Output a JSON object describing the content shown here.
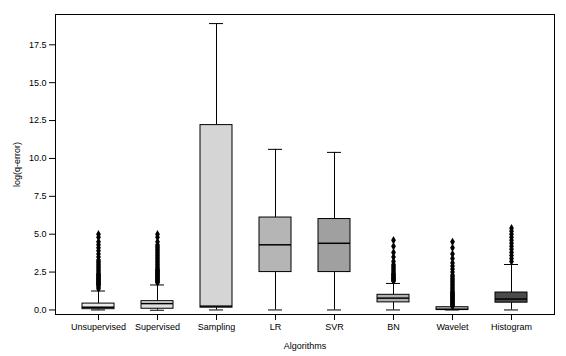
{
  "chart_data": {
    "type": "box",
    "xlabel": "Algorithms",
    "ylabel": "log(q-error)",
    "categories": [
      "Unsupervised",
      "Supervised",
      "Sampling",
      "LR",
      "SVR",
      "BN",
      "Wavelet",
      "Histogram"
    ],
    "median": [
      0.18,
      0.42,
      0.25,
      4.3,
      4.4,
      0.78,
      0.04,
      0.72
    ],
    "q1": [
      0.05,
      0.08,
      0.15,
      2.5,
      2.5,
      0.5,
      0.01,
      0.48
    ],
    "q3": [
      0.42,
      0.58,
      12.2,
      6.1,
      6.0,
      1.0,
      0.18,
      1.15
    ],
    "whislo": [
      0.0,
      -0.02,
      0.0,
      0.0,
      0.0,
      0.0,
      0.0,
      0.0
    ],
    "whishi": [
      1.25,
      1.65,
      18.9,
      10.6,
      10.4,
      1.75,
      0.04,
      3.0
    ],
    "fliers": [
      [
        1.4,
        1.5,
        1.6,
        1.65,
        1.7,
        1.75,
        1.8,
        1.85,
        1.9,
        1.95,
        2.0,
        2.05,
        2.1,
        2.15,
        2.2,
        2.25,
        2.3,
        2.35,
        2.4,
        2.5,
        2.6,
        2.7,
        2.8,
        2.9,
        3.0,
        3.1,
        3.2,
        3.3,
        3.5,
        3.7,
        3.9,
        4.1,
        4.3,
        4.5,
        4.8,
        5.0
      ],
      [
        1.8,
        1.85,
        1.9,
        1.95,
        2.0,
        2.05,
        2.1,
        2.15,
        2.2,
        2.25,
        2.3,
        2.35,
        2.4,
        2.45,
        2.5,
        2.55,
        2.6,
        2.65,
        2.7,
        2.8,
        2.9,
        3.0,
        3.1,
        3.2,
        3.3,
        3.4,
        3.5,
        3.6,
        3.7,
        3.8,
        3.9,
        4.0,
        4.1,
        4.2,
        4.3,
        4.5,
        4.8,
        5.0
      ],
      [],
      [],
      [],
      [
        1.9,
        1.95,
        2.0,
        2.05,
        2.1,
        2.15,
        2.2,
        2.25,
        2.3,
        2.35,
        2.4,
        2.5,
        2.6,
        2.7,
        2.8,
        2.9,
        3.0,
        3.2,
        3.5,
        3.8,
        4.2,
        4.6
      ],
      [
        0.25,
        0.3,
        0.35,
        0.4,
        0.45,
        0.5,
        0.55,
        0.6,
        0.65,
        0.7,
        0.75,
        0.8,
        0.85,
        0.9,
        0.95,
        1.0,
        1.05,
        1.1,
        1.15,
        1.2,
        1.3,
        1.4,
        1.5,
        1.6,
        1.7,
        1.8,
        1.9,
        2.0,
        2.1,
        2.2,
        2.3,
        2.5,
        2.7,
        2.9,
        3.1,
        3.4,
        3.7,
        4.1,
        4.5
      ],
      [
        3.2,
        3.4,
        3.6,
        3.8,
        4.0,
        4.2,
        4.4,
        4.6,
        4.8,
        5.0,
        5.2,
        5.4
      ]
    ],
    "colors": [
      "#ebebeb",
      "#e0e0e0",
      "#d5d5d5",
      "#b5b5b5",
      "#a0a0a0",
      "#b0b0b0",
      "#bebebe",
      "#4a4a4a"
    ],
    "marker": "diamond",
    "ylim": [
      -0.3,
      19.5
    ],
    "yticks": [
      {
        "value": 0,
        "label": "0.0"
      },
      2.5,
      {
        "value": 5,
        "label": "5.0"
      },
      7.5,
      {
        "value": 10,
        "label": "10.0"
      },
      12.5,
      {
        "value": 15,
        "label": "15.0"
      },
      17.5
    ]
  }
}
